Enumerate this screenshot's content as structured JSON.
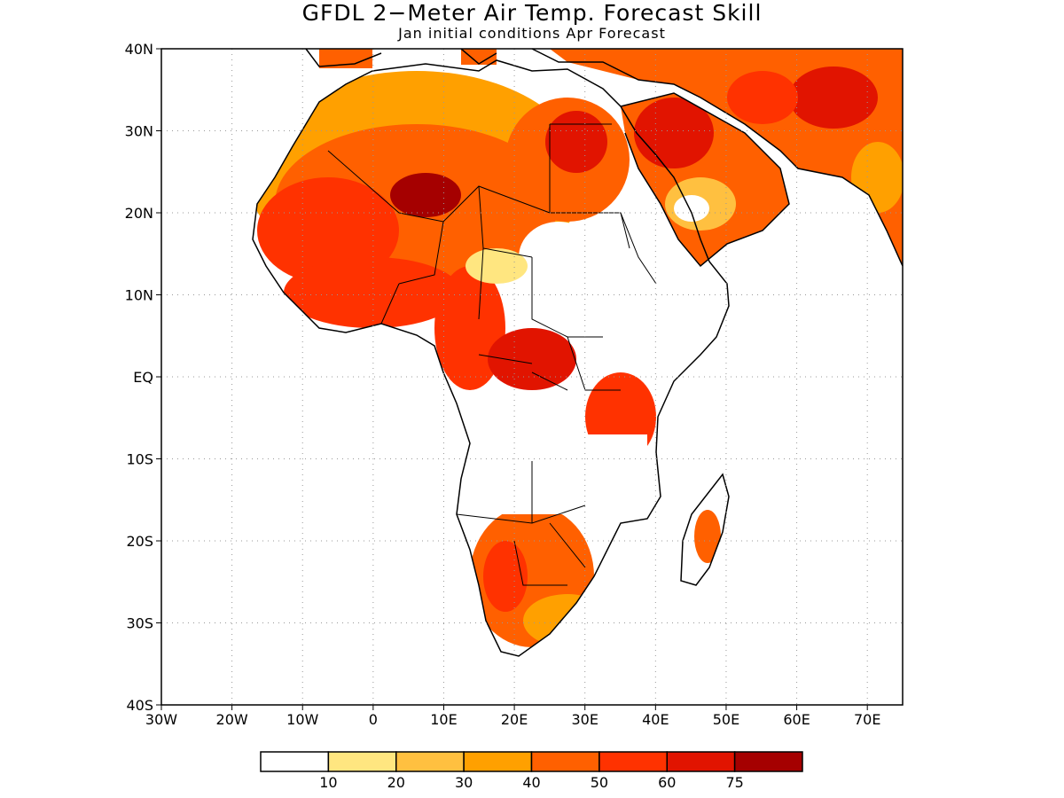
{
  "title": "GFDL 2−Meter Air Temp. Forecast Skill",
  "subtitle": "Jan initial conditions  Apr Forecast",
  "map": {
    "lon_range": [
      -30,
      75
    ],
    "lat_range": [
      -40,
      40
    ],
    "lat_labels": [
      "40N",
      "30N",
      "20N",
      "10N",
      "EQ",
      "10S",
      "20S",
      "30S",
      "40S"
    ],
    "lat_values": [
      40,
      30,
      20,
      10,
      0,
      -10,
      -20,
      -30,
      -40
    ],
    "lon_labels": [
      "30W",
      "20W",
      "10W",
      "0",
      "10E",
      "20E",
      "30E",
      "40E",
      "50E",
      "60E",
      "70E"
    ],
    "lon_values": [
      -30,
      -20,
      -10,
      0,
      10,
      20,
      30,
      40,
      50,
      60,
      70
    ],
    "grid": true
  },
  "legend": {
    "colors": [
      "#ffffff",
      "#ffe680",
      "#ffc040",
      "#ffa000",
      "#ff6000",
      "#ff3200",
      "#e11400",
      "#a50000"
    ],
    "labels": [
      "10",
      "20",
      "30",
      "40",
      "50",
      "60",
      "75"
    ]
  }
}
